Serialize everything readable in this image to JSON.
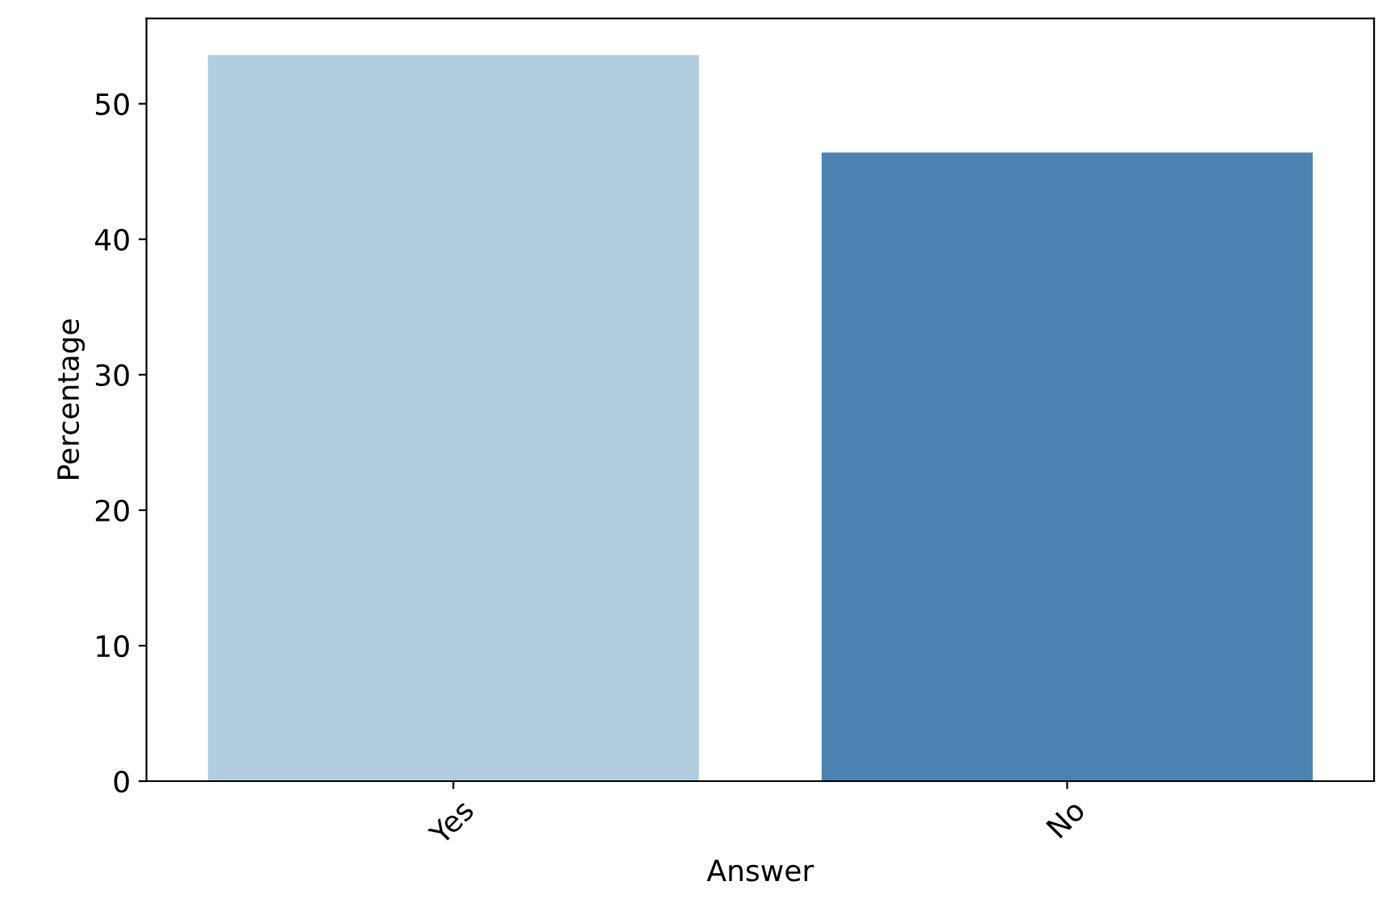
{
  "chart_data": {
    "type": "bar",
    "xlabel": "Answer",
    "ylabel": "Percentage",
    "categories": [
      "Yes",
      "No"
    ],
    "values": [
      53.6,
      46.4
    ],
    "colors": [
      "#b3cde0",
      "#4a83b0"
    ],
    "ylim": [
      0,
      56.3
    ],
    "yticks": [
      0,
      10,
      20,
      30,
      40,
      50
    ],
    "grid": false
  }
}
